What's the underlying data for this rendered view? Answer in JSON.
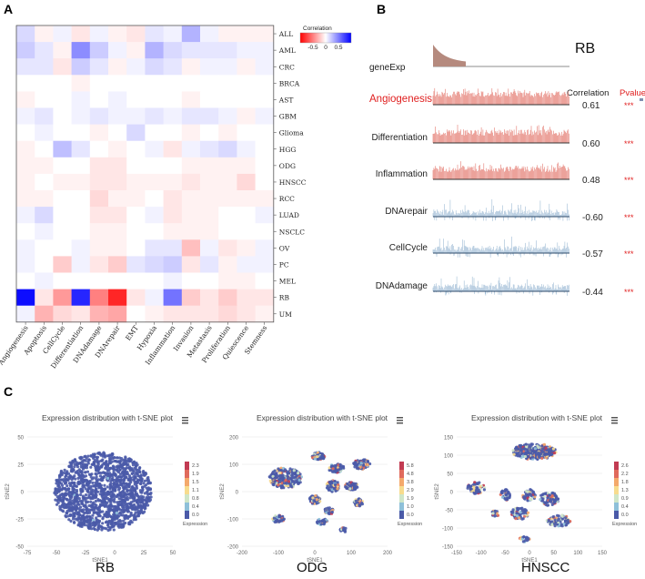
{
  "panels": {
    "a": "A",
    "b": "B",
    "c": "C"
  },
  "chart_data": [
    {
      "type": "heatmap",
      "panel": "A",
      "x_labels": [
        "Angiogenesis",
        "Apoptosis",
        "CellCycle",
        "Differentiation",
        "DNAdamage",
        "DNArepair",
        "EMT",
        "Hypoxia",
        "Inflammation",
        "Invasion",
        "Metastasis",
        "Proliferation",
        "Quiescence",
        "Stemness"
      ],
      "y_labels": [
        "ALL",
        "AML",
        "CRC",
        "BRCA",
        "AST",
        "GBM",
        "Glioma",
        "HGG",
        "ODG",
        "HNSCC",
        "RCC",
        "LUAD",
        "NSCLC",
        "OV",
        "PC",
        "MEL",
        "RB",
        "UM"
      ],
      "values": [
        [
          0.15,
          -0.05,
          0.05,
          -0.1,
          0.05,
          -0.05,
          -0.1,
          0.1,
          0.05,
          0.3,
          0.05,
          -0.05,
          -0.05,
          -0.05
        ],
        [
          0.2,
          0.1,
          -0.05,
          0.45,
          0.2,
          0.05,
          -0.05,
          0.3,
          0.15,
          0.1,
          0.1,
          0.1,
          0.05,
          0.05
        ],
        [
          0.1,
          0.1,
          -0.1,
          0.2,
          0.1,
          -0.05,
          0.05,
          0.15,
          0.1,
          -0.05,
          0.05,
          0.05,
          -0.05,
          0.05
        ],
        [
          0.0,
          0.0,
          0.0,
          -0.05,
          0.0,
          0.0,
          0.0,
          0.0,
          0.0,
          0.0,
          0.0,
          0.0,
          0.0,
          0.0
        ],
        [
          -0.05,
          0.0,
          0.0,
          0.05,
          0.0,
          0.05,
          0.0,
          0.0,
          0.0,
          -0.05,
          0.0,
          0.0,
          0.0,
          0.0
        ],
        [
          0.05,
          0.1,
          0.0,
          0.05,
          0.1,
          0.05,
          0.05,
          0.1,
          0.05,
          0.1,
          0.1,
          0.05,
          -0.05,
          0.05
        ],
        [
          0.0,
          0.05,
          0.0,
          0.0,
          -0.05,
          0.0,
          0.15,
          0.0,
          0.0,
          -0.05,
          0.0,
          -0.05,
          0.0,
          0.0
        ],
        [
          -0.05,
          0.0,
          0.25,
          0.1,
          0.0,
          -0.05,
          0.0,
          0.05,
          -0.1,
          0.05,
          0.1,
          0.15,
          0.05,
          0.0
        ],
        [
          -0.05,
          -0.05,
          0.0,
          0.0,
          -0.1,
          -0.1,
          0.0,
          0.0,
          0.0,
          -0.05,
          -0.05,
          -0.05,
          -0.05,
          0.0
        ],
        [
          -0.05,
          0.0,
          -0.05,
          -0.05,
          -0.1,
          -0.1,
          -0.05,
          -0.05,
          -0.05,
          -0.1,
          -0.05,
          -0.05,
          -0.15,
          0.0
        ],
        [
          -0.05,
          -0.05,
          0.0,
          0.0,
          -0.15,
          -0.05,
          -0.05,
          0.0,
          -0.1,
          -0.05,
          -0.05,
          -0.05,
          -0.05,
          -0.05
        ],
        [
          0.05,
          0.15,
          0.0,
          0.0,
          -0.1,
          -0.1,
          0.0,
          0.05,
          -0.1,
          -0.05,
          -0.05,
          0.0,
          0.0,
          0.05
        ],
        [
          0.0,
          0.05,
          0.0,
          0.0,
          -0.05,
          -0.05,
          0.0,
          0.0,
          -0.05,
          -0.05,
          -0.05,
          0.0,
          0.0,
          0.0
        ],
        [
          0.05,
          0.0,
          0.0,
          0.05,
          -0.05,
          -0.05,
          0.0,
          0.1,
          0.1,
          -0.25,
          0.05,
          -0.1,
          -0.05,
          0.05
        ],
        [
          0.05,
          0.0,
          -0.2,
          0.05,
          -0.1,
          -0.2,
          0.1,
          0.15,
          0.2,
          -0.1,
          0.1,
          -0.05,
          0.05,
          0.05
        ],
        [
          0.0,
          0.05,
          0.0,
          0.0,
          0.0,
          0.0,
          0.0,
          0.0,
          0.05,
          0.0,
          0.0,
          -0.05,
          -0.05,
          0.0
        ],
        [
          0.95,
          -0.1,
          -0.4,
          0.85,
          -0.5,
          -0.85,
          -0.1,
          0.05,
          0.55,
          -0.2,
          -0.1,
          -0.2,
          -0.1,
          -0.1
        ],
        [
          0.05,
          -0.3,
          -0.15,
          -0.1,
          -0.3,
          -0.35,
          0.0,
          -0.05,
          -0.1,
          -0.1,
          -0.1,
          -0.15,
          -0.1,
          -0.05
        ]
      ],
      "colorbar": {
        "title": "Correlation",
        "ticks": [
          "-0.5",
          "0",
          "0.5"
        ],
        "range": [
          -1,
          1
        ]
      }
    },
    {
      "type": "line",
      "panel": "B",
      "title": "RB",
      "col_correlation": "Correlation",
      "col_pvalue": "Pvalue",
      "gene_track": "geneExp",
      "tracks": [
        {
          "name": "Angiogenesis",
          "correlation": "0.61",
          "pvalue": "***",
          "sign": 1,
          "highlight": true
        },
        {
          "name": "Differentiation",
          "correlation": "0.60",
          "pvalue": "***",
          "sign": 1,
          "highlight": false
        },
        {
          "name": "Inflammation",
          "correlation": "0.48",
          "pvalue": "***",
          "sign": 1,
          "highlight": false
        },
        {
          "name": "DNArepair",
          "correlation": "-0.60",
          "pvalue": "***",
          "sign": -1,
          "highlight": false
        },
        {
          "name": "CellCycle",
          "correlation": "-0.57",
          "pvalue": "***",
          "sign": -1,
          "highlight": false
        },
        {
          "name": "DNAdamage",
          "correlation": "-0.44",
          "pvalue": "***",
          "sign": -1,
          "highlight": false
        }
      ]
    },
    {
      "type": "scatter",
      "panel": "C",
      "plots": [
        {
          "name": "RB",
          "title": "Expression distribution with t-SNE plot",
          "xlabel": "tSNE1",
          "ylabel": "tSNE2",
          "xticks": [
            "-75",
            "-50",
            "-25",
            "0",
            "25",
            "50"
          ],
          "yticks": [
            "50",
            "25",
            "0",
            "-25",
            "-50"
          ],
          "xlim": [
            -75,
            50
          ],
          "ylim": [
            -50,
            50
          ],
          "legend_title": "Expression",
          "legend_ticks": [
            "2.3",
            "1.9",
            "1.5",
            "1.1",
            "0.8",
            "0.4",
            "0.0"
          ]
        },
        {
          "name": "ODG",
          "title": "Expression distribution with t-SNE plot",
          "xlabel": "tSNE1",
          "ylabel": "tSNE2",
          "xticks": [
            "-200",
            "-100",
            "0",
            "100",
            "200"
          ],
          "yticks": [
            "200",
            "100",
            "0",
            "-100",
            "-200"
          ],
          "xlim": [
            -200,
            200
          ],
          "ylim": [
            -200,
            200
          ],
          "legend_title": "Expression",
          "legend_ticks": [
            "5.8",
            "4.8",
            "3.8",
            "2.9",
            "1.9",
            "1.0",
            "0.0"
          ]
        },
        {
          "name": "HNSCC",
          "title": "Expression distribution with t-SNE plot",
          "xlabel": "tSNE1",
          "ylabel": "tSNE2",
          "xticks": [
            "-150",
            "-100",
            "-50",
            "0",
            "50",
            "100",
            "150"
          ],
          "yticks": [
            "150",
            "100",
            "50",
            "0",
            "-50",
            "-100",
            "-150"
          ],
          "xlim": [
            -150,
            150
          ],
          "ylim": [
            -150,
            150
          ],
          "legend_title": "Expression",
          "legend_ticks": [
            "2.6",
            "2.2",
            "1.8",
            "1.3",
            "0.9",
            "0.4",
            "0.0"
          ]
        }
      ]
    }
  ]
}
